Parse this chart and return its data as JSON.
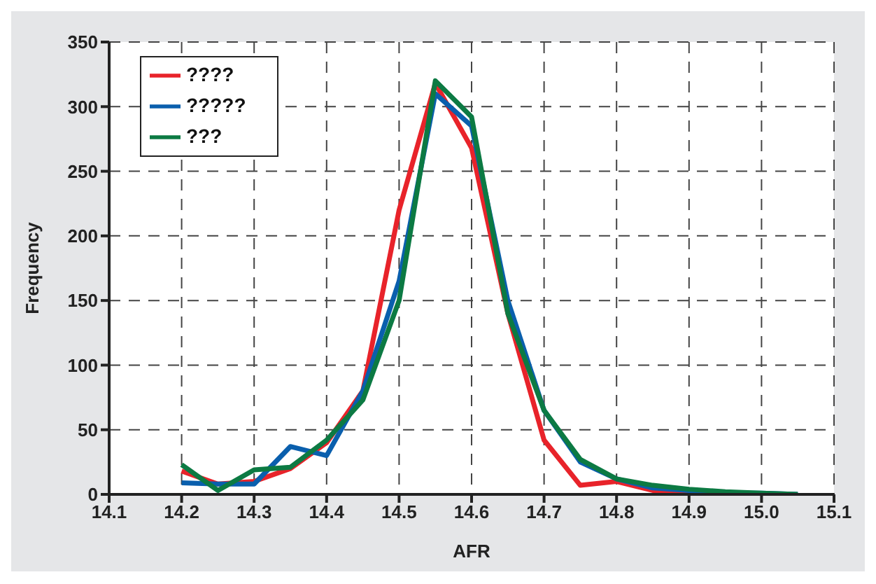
{
  "chart_data": {
    "type": "line",
    "xlabel": "AFR",
    "ylabel": "Frequency",
    "x": [
      14.2,
      14.25,
      14.3,
      14.35,
      14.4,
      14.45,
      14.5,
      14.55,
      14.6,
      14.65,
      14.7,
      14.75,
      14.8,
      14.85,
      14.9,
      14.95,
      15.0,
      15.05
    ],
    "series": [
      {
        "name": "????",
        "color": "#e8232a",
        "values": [
          18,
          8,
          10,
          20,
          40,
          80,
          220,
          318,
          268,
          140,
          42,
          7,
          10,
          3,
          2,
          null,
          null,
          null
        ]
      },
      {
        "name": "?????",
        "color": "#0a5fad",
        "values": [
          9,
          8,
          8,
          37,
          30,
          80,
          165,
          310,
          285,
          150,
          65,
          25,
          12,
          5,
          3,
          1,
          1,
          0
        ]
      },
      {
        "name": "???",
        "color": "#0c7a43",
        "values": [
          23,
          3,
          19,
          21,
          42,
          73,
          150,
          320,
          292,
          140,
          65,
          27,
          12,
          7,
          4,
          2,
          1,
          0
        ]
      }
    ],
    "xlim": [
      14.1,
      15.1
    ],
    "xticks": [
      14.1,
      14.2,
      14.3,
      14.4,
      14.5,
      14.6,
      14.7,
      14.8,
      14.9,
      {
        "value": 15.0,
        "label": "15.0"
      },
      15.1
    ],
    "ylim": [
      0,
      350
    ],
    "yticks": [
      0,
      50,
      100,
      150,
      200,
      250,
      300,
      350
    ],
    "grid": true,
    "legend": "top left",
    "marker": "none",
    "line_style": "solid"
  }
}
